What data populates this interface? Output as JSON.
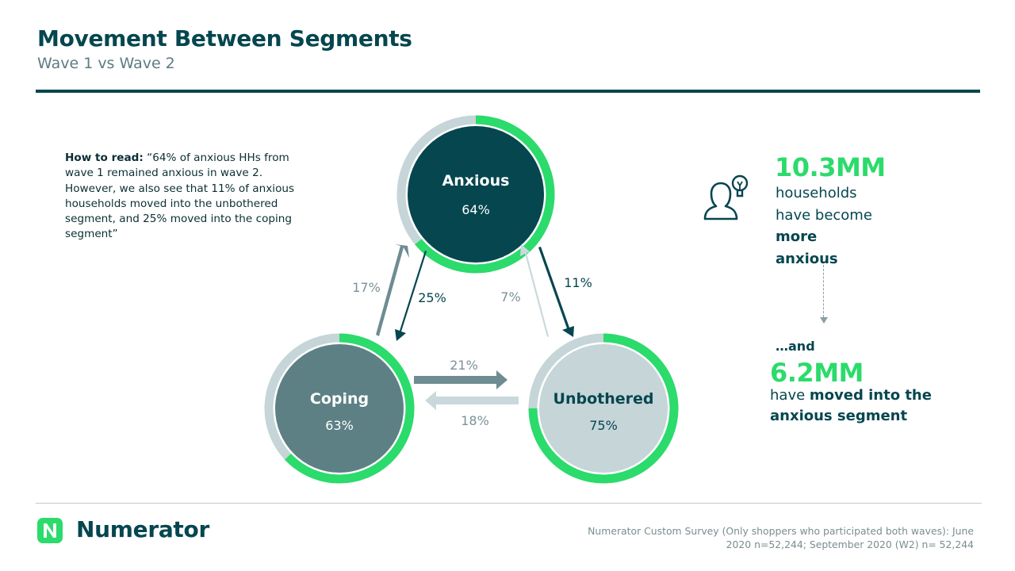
{
  "header": {
    "title": "Movement Between Segments",
    "subtitle": "Wave 1 vs Wave 2"
  },
  "how_to_read": {
    "label": "How to read:",
    "text": "“64% of anxious HHs from wave 1 remained anxious in wave 2. However, we also see that 11% of anxious households moved into the unbothered segment, and 25% moved into the coping segment”"
  },
  "segments": [
    {
      "id": "anxious",
      "name": "Anxious",
      "pct_label": "64%",
      "retained": 0.64,
      "fill": "#05464f",
      "text_color": "#ffffff"
    },
    {
      "id": "coping",
      "name": "Coping",
      "pct_label": "63%",
      "retained": 0.63,
      "fill": "#5d8085",
      "text_color": "#ffffff"
    },
    {
      "id": "unbothered",
      "name": "Unbothered",
      "pct_label": "75%",
      "retained": 0.75,
      "fill": "#c5d5d8",
      "text_color": "#05464f"
    }
  ],
  "flows": [
    {
      "id": "coping-to-anxious",
      "label": "17%",
      "color": "#6e8c91",
      "label_color": "#7c9296"
    },
    {
      "id": "anxious-to-coping",
      "label": "25%",
      "color": "#05464f",
      "label_color": "#05464f"
    },
    {
      "id": "unbothered-to-anxious",
      "label": "7%",
      "color": "#c9d9db",
      "label_color": "#7c9296"
    },
    {
      "id": "anxious-to-unbothered",
      "label": "11%",
      "color": "#05464f",
      "label_color": "#05464f"
    },
    {
      "id": "coping-to-unbothered",
      "label": "21%",
      "color": "#6e8c91",
      "label_color": "#7c9296"
    },
    {
      "id": "unbothered-to-coping",
      "label": "18%",
      "color": "#c9d9db",
      "label_color": "#7c9296"
    }
  ],
  "accent_color": "#2bdb6b",
  "callout": {
    "icon": "person-lightbulb-icon",
    "stat1_value": "10.3MM",
    "stat1_line1": "households",
    "stat1_line2": "have become",
    "stat1_bold1": "more",
    "stat1_bold2": "anxious",
    "connector": "…and",
    "stat2_value": "6.2MM",
    "stat2_prefix": "have ",
    "stat2_bold1": "moved into the",
    "stat2_bold2": "anxious segment"
  },
  "footer": {
    "brand": "Numerator",
    "logo_icon": "numerator-logo-icon",
    "source_line1": "Numerator Custom Survey (Only shoppers who participated both waves): June",
    "source_line2": "2020 n=52,244; September 2020 (W2) n= 52,244"
  }
}
